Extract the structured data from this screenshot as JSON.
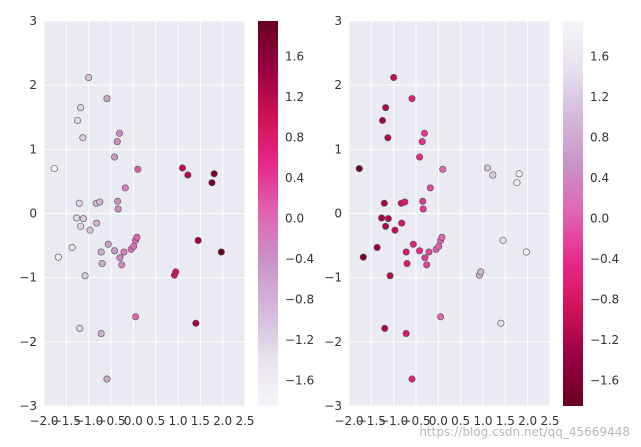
{
  "watermark": "https://blog.csdn.net/qq_45669448",
  "colormaps": {
    "PuRd": [
      "#f7f4f9",
      "#e7e1ef",
      "#d4b9da",
      "#c994c7",
      "#df65b0",
      "#e7298a",
      "#ce1256",
      "#980043",
      "#67001f"
    ],
    "PuRd_r": [
      "#67001f",
      "#980043",
      "#ce1256",
      "#e7298a",
      "#df65b0",
      "#c994c7",
      "#d4b9da",
      "#e7e1ef",
      "#f7f4f9"
    ]
  },
  "chart_data": [
    {
      "type": "scatter",
      "colormap": "PuRd",
      "xlim": [
        -2.0,
        2.5
      ],
      "ylim": [
        -3,
        3
      ],
      "x_ticks": [
        "−2.0",
        "−1.5",
        "−1.0",
        "−0.5",
        "0.0",
        "0.5",
        "1.0",
        "1.5",
        "2.0",
        "2.5"
      ],
      "y_ticks": [
        "−3",
        "−2",
        "−1",
        "0",
        "1",
        "2",
        "3"
      ],
      "colorbar": {
        "range": [
          -1.85,
          1.95
        ],
        "ticks": [
          "1.6",
          "1.2",
          "0.8",
          "0.4",
          "0.0",
          "−0.4",
          "−0.8",
          "−1.2",
          "−1.6"
        ]
      },
      "grid": true,
      "points": [
        {
          "x": -1.77,
          "y": 0.7
        },
        {
          "x": -1.68,
          "y": -0.68
        },
        {
          "x": -1.37,
          "y": -0.53
        },
        {
          "x": -1.25,
          "y": 1.45
        },
        {
          "x": -1.18,
          "y": 1.65
        },
        {
          "x": -1.13,
          "y": 1.18
        },
        {
          "x": -1.27,
          "y": -0.07
        },
        {
          "x": -1.21,
          "y": 0.16
        },
        {
          "x": -1.12,
          "y": -0.08
        },
        {
          "x": -1.18,
          "y": -0.2
        },
        {
          "x": -1.0,
          "y": 2.12
        },
        {
          "x": -1.08,
          "y": -0.97
        },
        {
          "x": -0.97,
          "y": -0.26
        },
        {
          "x": -0.83,
          "y": 0.16
        },
        {
          "x": -0.82,
          "y": -0.15
        },
        {
          "x": -0.75,
          "y": 0.18
        },
        {
          "x": -0.72,
          "y": -0.6
        },
        {
          "x": -0.7,
          "y": -0.78
        },
        {
          "x": -0.56,
          "y": -0.48
        },
        {
          "x": -0.42,
          "y": -0.58
        },
        {
          "x": -0.59,
          "y": 1.79
        },
        {
          "x": -0.42,
          "y": 0.88
        },
        {
          "x": -0.36,
          "y": 1.12
        },
        {
          "x": -0.31,
          "y": 1.25
        },
        {
          "x": -0.3,
          "y": -0.69
        },
        {
          "x": -0.35,
          "y": 0.19
        },
        {
          "x": -0.34,
          "y": 0.07
        },
        {
          "x": -0.18,
          "y": 0.4
        },
        {
          "x": -0.21,
          "y": -0.6
        },
        {
          "x": -0.26,
          "y": -0.8
        },
        {
          "x": -0.05,
          "y": -0.56
        },
        {
          "x": 0.01,
          "y": -0.51
        },
        {
          "x": 0.05,
          "y": -0.42
        },
        {
          "x": 0.08,
          "y": -0.37
        },
        {
          "x": 0.1,
          "y": 0.69
        },
        {
          "x": -1.2,
          "y": -1.79
        },
        {
          "x": -0.72,
          "y": -1.87
        },
        {
          "x": 0.05,
          "y": -1.61
        },
        {
          "x": -0.59,
          "y": -2.58
        },
        {
          "x": 0.92,
          "y": -0.96
        },
        {
          "x": 0.95,
          "y": -0.91
        },
        {
          "x": 1.1,
          "y": 0.71
        },
        {
          "x": 1.22,
          "y": 0.6
        },
        {
          "x": 1.45,
          "y": -0.42
        },
        {
          "x": 1.76,
          "y": 0.48
        },
        {
          "x": 1.81,
          "y": 0.62
        },
        {
          "x": 1.97,
          "y": -0.6
        },
        {
          "x": 1.4,
          "y": -1.71
        }
      ]
    },
    {
      "type": "scatter",
      "colormap": "PuRd_r",
      "xlim": [
        -2.0,
        2.5
      ],
      "ylim": [
        -3,
        3
      ],
      "x_ticks": [
        "−2.0",
        "−1.5",
        "−1.0",
        "−0.5",
        "0.0",
        "0.5",
        "1.0",
        "1.5",
        "2.0",
        "2.5"
      ],
      "y_ticks": [
        "−3",
        "−2",
        "−1",
        "0",
        "1",
        "2",
        "3"
      ],
      "colorbar": {
        "range": [
          -1.85,
          1.95
        ],
        "ticks": [
          "1.6",
          "1.2",
          "0.8",
          "0.4",
          "0.0",
          "−0.4",
          "−0.8",
          "−1.2",
          "−1.6"
        ]
      },
      "grid": true,
      "points": [
        {
          "x": -1.77,
          "y": 0.7
        },
        {
          "x": -1.68,
          "y": -0.68
        },
        {
          "x": -1.37,
          "y": -0.53
        },
        {
          "x": -1.25,
          "y": 1.45
        },
        {
          "x": -1.18,
          "y": 1.65
        },
        {
          "x": -1.13,
          "y": 1.18
        },
        {
          "x": -1.27,
          "y": -0.07
        },
        {
          "x": -1.21,
          "y": 0.16
        },
        {
          "x": -1.12,
          "y": -0.08
        },
        {
          "x": -1.18,
          "y": -0.2
        },
        {
          "x": -1.0,
          "y": 2.12
        },
        {
          "x": -1.08,
          "y": -0.97
        },
        {
          "x": -0.97,
          "y": -0.26
        },
        {
          "x": -0.83,
          "y": 0.16
        },
        {
          "x": -0.82,
          "y": -0.15
        },
        {
          "x": -0.75,
          "y": 0.18
        },
        {
          "x": -0.72,
          "y": -0.6
        },
        {
          "x": -0.7,
          "y": -0.78
        },
        {
          "x": -0.56,
          "y": -0.48
        },
        {
          "x": -0.42,
          "y": -0.58
        },
        {
          "x": -0.59,
          "y": 1.79
        },
        {
          "x": -0.42,
          "y": 0.88
        },
        {
          "x": -0.36,
          "y": 1.12
        },
        {
          "x": -0.31,
          "y": 1.25
        },
        {
          "x": -0.3,
          "y": -0.69
        },
        {
          "x": -0.35,
          "y": 0.19
        },
        {
          "x": -0.34,
          "y": 0.07
        },
        {
          "x": -0.18,
          "y": 0.4
        },
        {
          "x": -0.21,
          "y": -0.6
        },
        {
          "x": -0.26,
          "y": -0.8
        },
        {
          "x": -0.05,
          "y": -0.56
        },
        {
          "x": 0.01,
          "y": -0.51
        },
        {
          "x": 0.05,
          "y": -0.42
        },
        {
          "x": 0.08,
          "y": -0.37
        },
        {
          "x": 0.1,
          "y": 0.69
        },
        {
          "x": -1.2,
          "y": -1.79
        },
        {
          "x": -0.72,
          "y": -1.87
        },
        {
          "x": 0.05,
          "y": -1.61
        },
        {
          "x": -0.59,
          "y": -2.58
        },
        {
          "x": 0.92,
          "y": -0.96
        },
        {
          "x": 0.95,
          "y": -0.91
        },
        {
          "x": 1.1,
          "y": 0.71
        },
        {
          "x": 1.22,
          "y": 0.6
        },
        {
          "x": 1.45,
          "y": -0.42
        },
        {
          "x": 1.76,
          "y": 0.48
        },
        {
          "x": 1.81,
          "y": 0.62
        },
        {
          "x": 1.97,
          "y": -0.6
        },
        {
          "x": 1.4,
          "y": -1.71
        }
      ]
    }
  ]
}
